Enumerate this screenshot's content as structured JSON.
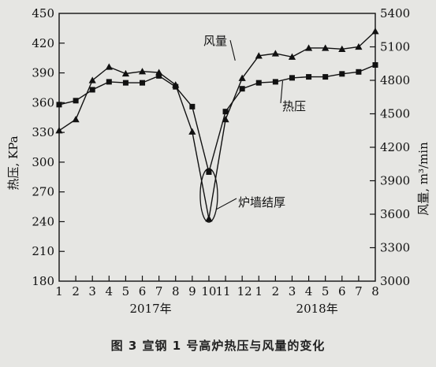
{
  "caption": "图 3   宣钢 1 号高炉热压与风量的变化",
  "chart_data": {
    "type": "line",
    "categories": [
      "1",
      "2",
      "3",
      "4",
      "5",
      "6",
      "7",
      "8",
      "9",
      "10",
      "11",
      "12",
      "1",
      "2",
      "3",
      "4",
      "5",
      "6",
      "7",
      "8"
    ],
    "year_labels": [
      "2017年",
      "2018年"
    ],
    "ylabel": "热压, KPa",
    "ylabel2": "风量, m³/min",
    "ylim": [
      180,
      450
    ],
    "yticks": [
      180,
      210,
      240,
      270,
      300,
      330,
      360,
      390,
      420,
      450
    ],
    "y2lim": [
      3000,
      5400
    ],
    "y2ticks": [
      3000,
      3300,
      3600,
      3900,
      4200,
      4500,
      4800,
      5100,
      5400
    ],
    "grid": false,
    "series": [
      {
        "name": "风量",
        "axis": "right",
        "marker": "triangle",
        "values": [
          4350,
          4450,
          4800,
          4920,
          4860,
          4880,
          4870,
          4760,
          4340,
          3560,
          4450,
          4820,
          5020,
          5040,
          5010,
          5090,
          5090,
          5080,
          5100,
          5240
        ]
      },
      {
        "name": "热压",
        "axis": "left",
        "marker": "square",
        "values": [
          358,
          362,
          373,
          381,
          380,
          380,
          387,
          376,
          356,
          290,
          351,
          374,
          380,
          381,
          385,
          386,
          386,
          389,
          391,
          398
        ]
      }
    ],
    "annotations": [
      {
        "text": "风量"
      },
      {
        "text": "热压"
      },
      {
        "text": "炉墙结厚"
      }
    ]
  }
}
